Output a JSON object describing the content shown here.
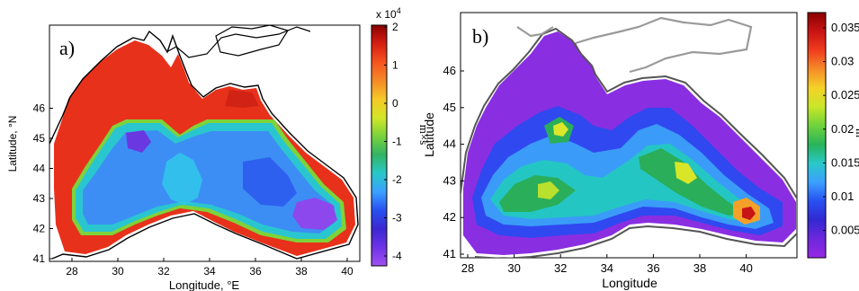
{
  "panels": [
    {
      "label": "a)",
      "xlabel": "Longitude, °E",
      "ylabel": "Latitude, °N",
      "xticks": [
        "28",
        "30",
        "32",
        "34",
        "36",
        "38",
        "40"
      ],
      "yticks": [
        "41",
        "42",
        "43",
        "44",
        "45",
        "46"
      ],
      "colorbar": {
        "exponent_label": "x 10",
        "exponent_power": "4",
        "unit_label": "m×s",
        "ticks": [
          "2",
          "1",
          "0",
          "-1",
          "-2",
          "-3",
          "-4"
        ],
        "colors": [
          "#8b0000",
          "#d61e14",
          "#f5541e",
          "#f58a28",
          "#f5c828",
          "#d2e628",
          "#78d23c",
          "#32b464",
          "#28c8c8",
          "#3ca0ff",
          "#2850f0",
          "#3c28d2",
          "#6e32e6",
          "#a050f0"
        ]
      }
    },
    {
      "label": "b)",
      "xlabel": "Longitude",
      "ylabel": "Latitude",
      "xticks": [
        "28",
        "30",
        "32",
        "34",
        "36",
        "38",
        "40"
      ],
      "yticks": [
        "41",
        "42",
        "43",
        "44",
        "45",
        "46"
      ],
      "colorbar": {
        "unit_label": "m",
        "ticks": [
          "0.035",
          "0.03",
          "0.025",
          "0.02",
          "0.015",
          "0.01",
          "0.005"
        ],
        "colors": [
          "#8b0000",
          "#c81414",
          "#f03c1e",
          "#f58c28",
          "#f5d228",
          "#c8e628",
          "#6ed23c",
          "#28b45a",
          "#28c8c8",
          "#3ca0ff",
          "#2850f0",
          "#3228d2",
          "#6e28dc",
          "#9628e6"
        ]
      }
    }
  ]
}
